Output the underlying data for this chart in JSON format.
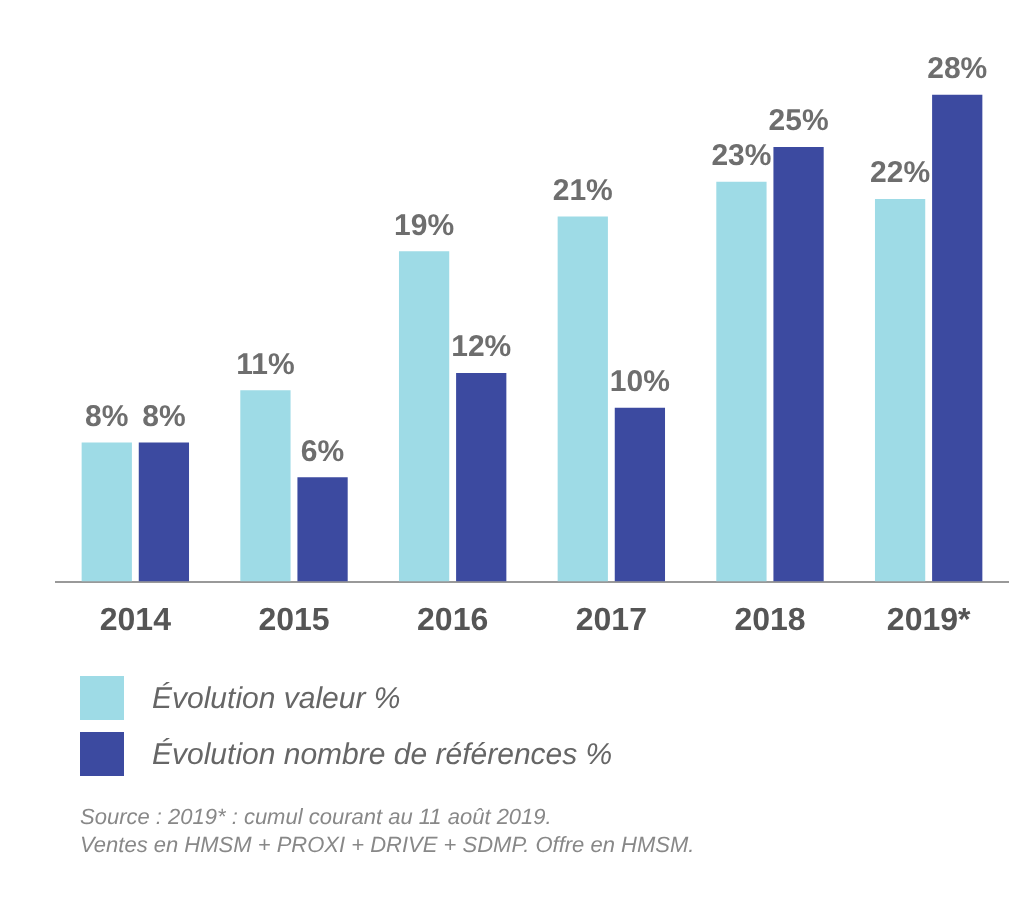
{
  "chart_data": {
    "type": "bar",
    "categories": [
      "2014",
      "2015",
      "2016",
      "2017",
      "2018",
      "2019*"
    ],
    "series": [
      {
        "name": "Évolution valeur %",
        "color": "#9edbe6",
        "values": [
          8,
          11,
          19,
          21,
          23,
          22
        ],
        "value_labels": [
          "8%",
          "11%",
          "19%",
          "21%",
          "23%",
          "22%"
        ]
      },
      {
        "name": "Évolution nombre de références %",
        "color": "#3c4aa0",
        "values": [
          8,
          6,
          12,
          10,
          25,
          28
        ],
        "value_labels": [
          "8%",
          "6%",
          "12%",
          "10%",
          "25%",
          "28%"
        ]
      }
    ],
    "legend": "bottom left",
    "grid": false,
    "annotations": [
      "Source : 2019* : cumul courant au 11 août 2019.",
      "Ventes en HMSM + PROXI + DRIVE + SDMP. Offre en HMSM."
    ]
  }
}
